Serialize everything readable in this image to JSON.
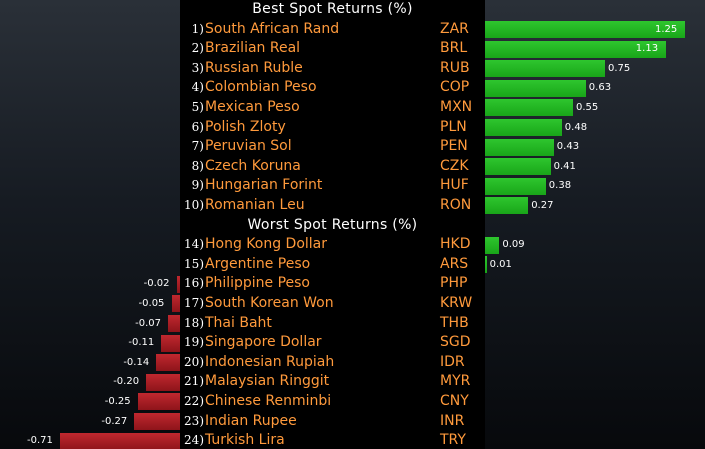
{
  "chart_data": {
    "type": "bar",
    "orientation": "horizontal",
    "sections": [
      {
        "title": "Best Spot Returns (%)",
        "rows": [
          {
            "rank": "1)",
            "name": "South African Rand",
            "code": "ZAR",
            "value": 1.25,
            "label": "1.25"
          },
          {
            "rank": "2)",
            "name": "Brazilian Real",
            "code": "BRL",
            "value": 1.13,
            "label": "1.13"
          },
          {
            "rank": "3)",
            "name": "Russian Ruble",
            "code": "RUB",
            "value": 0.75,
            "label": "0.75"
          },
          {
            "rank": "4)",
            "name": "Colombian Peso",
            "code": "COP",
            "value": 0.63,
            "label": "0.63"
          },
          {
            "rank": "5)",
            "name": "Mexican Peso",
            "code": "MXN",
            "value": 0.55,
            "label": "0.55"
          },
          {
            "rank": "6)",
            "name": "Polish Zloty",
            "code": "PLN",
            "value": 0.48,
            "label": "0.48"
          },
          {
            "rank": "7)",
            "name": "Peruvian Sol",
            "code": "PEN",
            "value": 0.43,
            "label": "0.43"
          },
          {
            "rank": "8)",
            "name": "Czech Koruna",
            "code": "CZK",
            "value": 0.41,
            "label": "0.41"
          },
          {
            "rank": "9)",
            "name": "Hungarian Forint",
            "code": "HUF",
            "value": 0.38,
            "label": "0.38"
          },
          {
            "rank": "10)",
            "name": "Romanian Leu",
            "code": "RON",
            "value": 0.27,
            "label": "0.27"
          }
        ]
      },
      {
        "title": "Worst Spot Returns (%)",
        "rows": [
          {
            "rank": "14)",
            "name": "Hong Kong Dollar",
            "code": "HKD",
            "value": 0.09,
            "label": "0.09"
          },
          {
            "rank": "15)",
            "name": "Argentine Peso",
            "code": "ARS",
            "value": 0.01,
            "label": "0.01"
          },
          {
            "rank": "16)",
            "name": "Philippine Peso",
            "code": "PHP",
            "value": -0.02,
            "label": "-0.02"
          },
          {
            "rank": "17)",
            "name": "South Korean Won",
            "code": "KRW",
            "value": -0.05,
            "label": "-0.05"
          },
          {
            "rank": "18)",
            "name": "Thai Baht",
            "code": "THB",
            "value": -0.07,
            "label": "-0.07"
          },
          {
            "rank": "19)",
            "name": "Singapore Dollar",
            "code": "SGD",
            "value": -0.11,
            "label": "-0.11"
          },
          {
            "rank": "20)",
            "name": "Indonesian Rupiah",
            "code": "IDR",
            "value": -0.14,
            "label": "-0.14"
          },
          {
            "rank": "21)",
            "name": "Malaysian Ringgit",
            "code": "MYR",
            "value": -0.2,
            "label": "-0.20"
          },
          {
            "rank": "22)",
            "name": "Chinese Renminbi",
            "code": "CNY",
            "value": -0.25,
            "label": "-0.25"
          },
          {
            "rank": "23)",
            "name": "Indian Rupee",
            "code": "INR",
            "value": -0.27,
            "label": "-0.27"
          },
          {
            "rank": "24)",
            "name": "Turkish Lira",
            "code": "TRY",
            "value": -0.71,
            "label": "-0.71"
          }
        ]
      }
    ],
    "colors": {
      "positive": "#22b422",
      "negative": "#b01e24",
      "currency_text": "#ff9a3c",
      "title_text": "#ffffff",
      "background": "#000000"
    }
  }
}
